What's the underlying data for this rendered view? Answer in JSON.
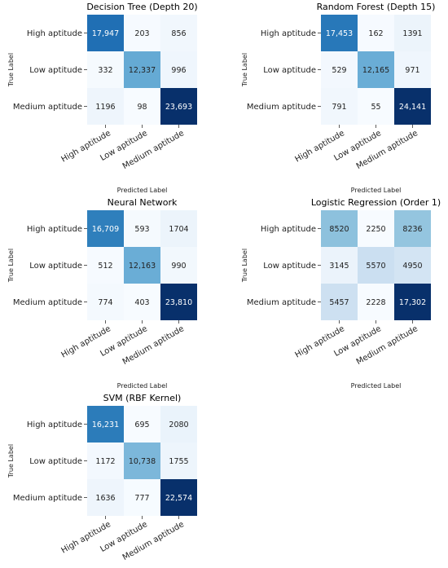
{
  "chart_data": [
    {
      "type": "heatmap",
      "title": "Decision Tree (Depth 20)",
      "xlabel": "Predicted Label",
      "ylabel": "True Label",
      "row_labels": [
        "High aptitude",
        "Low aptitude",
        "Medium aptitude"
      ],
      "col_labels": [
        "High aptitude",
        "Low aptitude",
        "Medium aptitude"
      ],
      "values": [
        [
          17947,
          203,
          856
        ],
        [
          332,
          12337,
          996
        ],
        [
          1196,
          98,
          23693
        ]
      ],
      "cell_text": [
        [
          "17,947",
          "203",
          "856"
        ],
        [
          "332",
          "12,337",
          "996"
        ],
        [
          "1196",
          "98",
          "23,693"
        ]
      ],
      "colormap": "Blues"
    },
    {
      "type": "heatmap",
      "title": "Random Forest (Depth 15)",
      "xlabel": "Predicted Label",
      "ylabel": "True Label",
      "row_labels": [
        "High aptitude",
        "Low aptitude",
        "Medium aptitude"
      ],
      "col_labels": [
        "High aptitude",
        "Low aptitude",
        "Medium aptitude"
      ],
      "values": [
        [
          17453,
          162,
          1391
        ],
        [
          529,
          12165,
          971
        ],
        [
          791,
          55,
          24141
        ]
      ],
      "cell_text": [
        [
          "17,453",
          "162",
          "1391"
        ],
        [
          "529",
          "12,165",
          "971"
        ],
        [
          "791",
          "55",
          "24,141"
        ]
      ],
      "colormap": "Blues"
    },
    {
      "type": "heatmap",
      "title": "Neural Network",
      "xlabel": "Predicted Label",
      "ylabel": "True Label",
      "row_labels": [
        "High aptitude",
        "Low aptitude",
        "Medium aptitude"
      ],
      "col_labels": [
        "High aptitude",
        "Low aptitude",
        "Medium aptitude"
      ],
      "values": [
        [
          16709,
          593,
          1704
        ],
        [
          512,
          12163,
          990
        ],
        [
          774,
          403,
          23810
        ]
      ],
      "cell_text": [
        [
          "16,709",
          "593",
          "1704"
        ],
        [
          "512",
          "12,163",
          "990"
        ],
        [
          "774",
          "403",
          "23,810"
        ]
      ],
      "colormap": "Blues"
    },
    {
      "type": "heatmap",
      "title": "Logistic Regression (Order 1)",
      "xlabel": "Predicted Label",
      "ylabel": "True Label",
      "row_labels": [
        "High aptitude",
        "Low aptitude",
        "Medium aptitude"
      ],
      "col_labels": [
        "High aptitude",
        "Low aptitude",
        "Medium aptitude"
      ],
      "values": [
        [
          8520,
          2250,
          8236
        ],
        [
          3145,
          5570,
          4950
        ],
        [
          5457,
          2228,
          17302
        ]
      ],
      "cell_text": [
        [
          "8520",
          "2250",
          "8236"
        ],
        [
          "3145",
          "5570",
          "4950"
        ],
        [
          "5457",
          "2228",
          "17,302"
        ]
      ],
      "colormap": "Blues"
    },
    {
      "type": "heatmap",
      "title": "SVM (RBF Kernel)",
      "xlabel": "Predicted Label",
      "ylabel": "True Label",
      "row_labels": [
        "High aptitude",
        "Low aptitude",
        "Medium aptitude"
      ],
      "col_labels": [
        "High aptitude",
        "Low aptitude",
        "Medium aptitude"
      ],
      "values": [
        [
          16231,
          695,
          2080
        ],
        [
          1172,
          10738,
          1755
        ],
        [
          1636,
          777,
          22574
        ]
      ],
      "cell_text": [
        [
          "16,231",
          "695",
          "2080"
        ],
        [
          "1172",
          "10,738",
          "1755"
        ],
        [
          "1636",
          "777",
          "22,574"
        ]
      ],
      "colormap": "Blues"
    }
  ]
}
